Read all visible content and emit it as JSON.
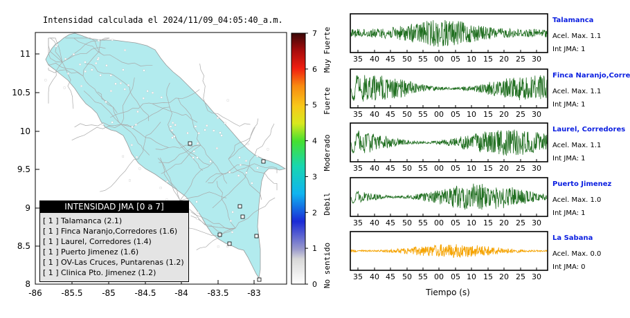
{
  "map": {
    "title": "Intensidad calculada el 2024/11/09_04:05:40_a.m.",
    "x_ticks": [
      "-86",
      "-85.5",
      "-85",
      "-84.5",
      "-84",
      "-83.5",
      "-83"
    ],
    "y_ticks": [
      "11",
      "10.5",
      "10",
      "9.5",
      "9",
      "8.5",
      "8"
    ],
    "colors": {
      "land": "#b2ebee",
      "roads": "#a9a9a9",
      "sea": "#ffffff"
    }
  },
  "colorbar": {
    "ticks": [
      "0",
      "1",
      "2",
      "3",
      "4",
      "5",
      "6",
      "7"
    ],
    "labels": [
      "No sentido",
      "Debil",
      "Moderado",
      "Fuerte",
      "Muy Fuerte"
    ]
  },
  "legend": {
    "title": "INTENSIDAD JMA [0 a 7]",
    "items": [
      {
        "index": "[ 1 ]",
        "text": "Talamanca (2.1)"
      },
      {
        "index": "[ 1 ]",
        "text": "Finca Naranjo,Corredores (1.6)"
      },
      {
        "index": "[ 1 ]",
        "text": "Laurel, Corredores (1.4)"
      },
      {
        "index": "[ 1 ]",
        "text": "Puerto Jimenez (1.6)"
      },
      {
        "index": "[ 1 ]",
        "text": "OV-Las Cruces, Puntarenas (1.2)"
      },
      {
        "index": "[ 1 ]",
        "text": "Clinica Pto. Jimenez (1.2)"
      }
    ]
  },
  "stations": [
    {
      "name": "Talamanca",
      "accel": "Acel. Max. 1.1",
      "int": "Int JMA: 1",
      "color": "#1f6e1f"
    },
    {
      "name": "Finca Naranjo,Corredores",
      "accel": "Acel. Max. 1.1",
      "int": "Int JMA: 1",
      "color": "#1f6e1f"
    },
    {
      "name": "Laurel, Corredores",
      "accel": "Acel. Max. 1.1",
      "int": "Int JMA: 1",
      "color": "#1f6e1f"
    },
    {
      "name": "Puerto Jimenez",
      "accel": "Acel. Max. 1.0",
      "int": "Int JMA: 1",
      "color": "#1f6e1f"
    },
    {
      "name": "La Sabana",
      "accel": "Acel. Max. 0.0",
      "int": "Int JMA: 0",
      "color": "#f5a300"
    }
  ],
  "time_ticks": [
    "35",
    "40",
    "45",
    "50",
    "55",
    "00",
    "05",
    "10",
    "15",
    "20",
    "25",
    "30"
  ],
  "time_axis_label": "Tiempo (s)"
}
